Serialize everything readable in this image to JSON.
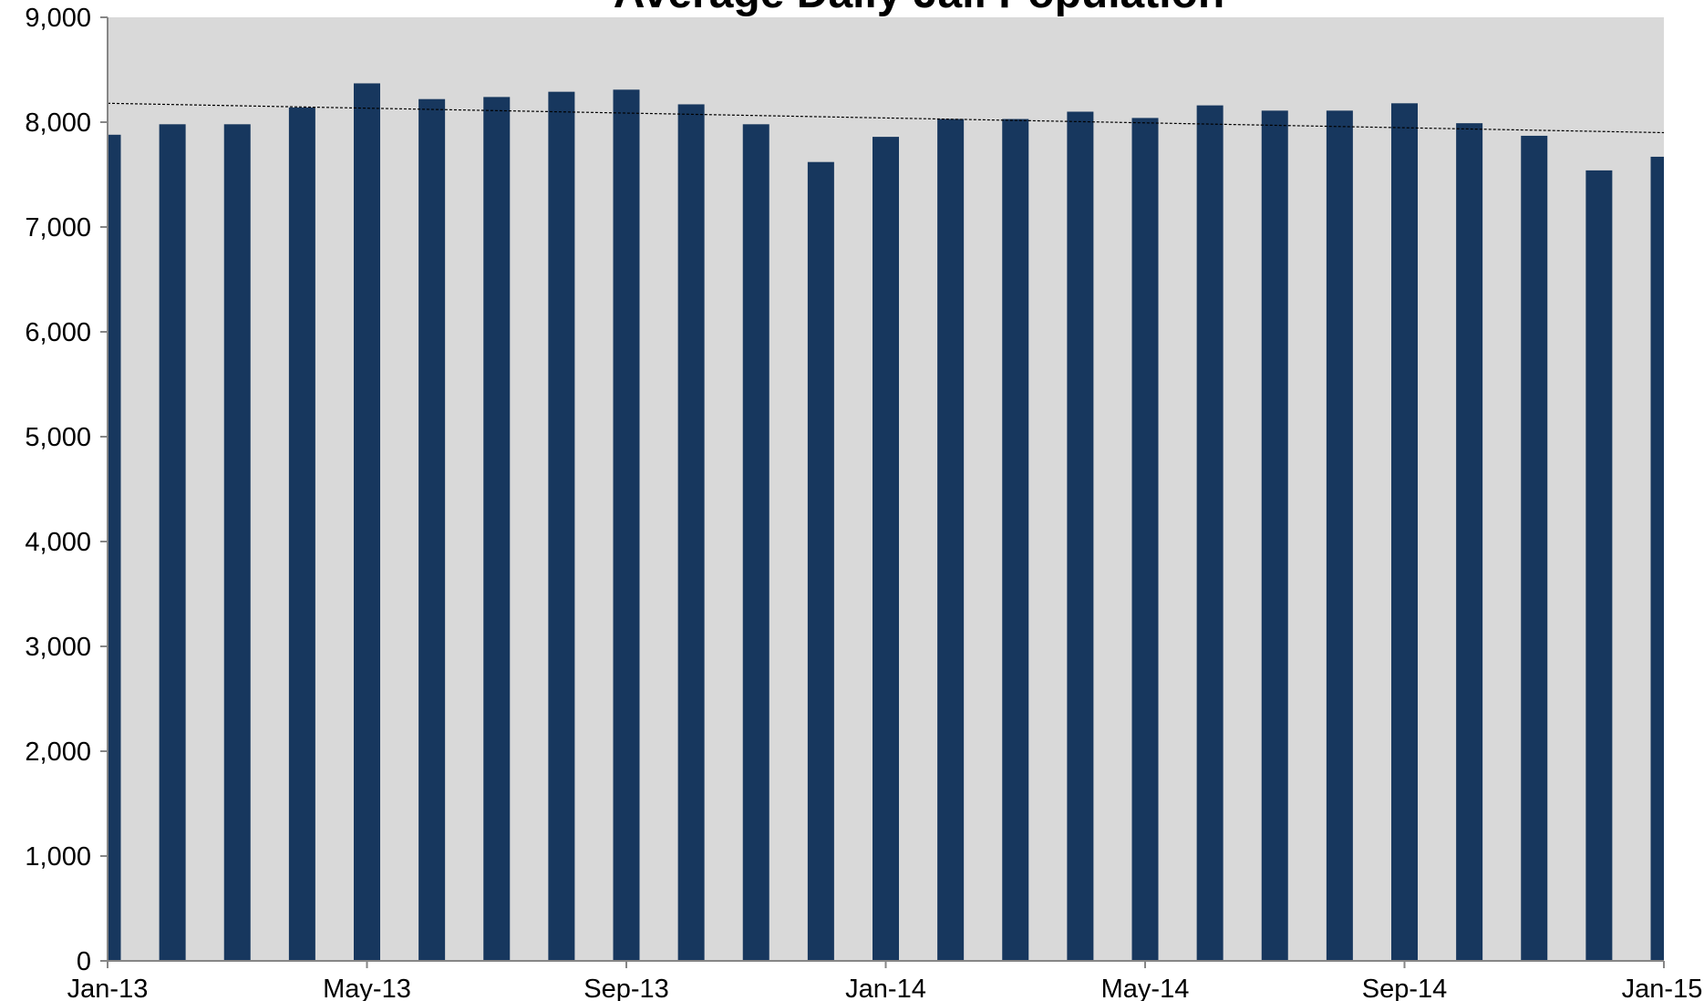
{
  "chart_data": {
    "type": "bar",
    "title": "Average Daily Jail Population",
    "categories": [
      "Jan-13",
      null,
      null,
      null,
      "May-13",
      null,
      null,
      null,
      "Sep-13",
      null,
      null,
      null,
      "Jan-14",
      null,
      null,
      null,
      "May-14",
      null,
      null,
      null,
      "Sep-14",
      null,
      null,
      null,
      "Jan-15"
    ],
    "values": [
      7880,
      7980,
      7980,
      8140,
      8370,
      8220,
      8240,
      8290,
      8310,
      8170,
      7980,
      7620,
      7860,
      8030,
      8030,
      8100,
      8040,
      8160,
      8110,
      8110,
      8180,
      7990,
      7870,
      7540,
      7670
    ],
    "color": "#17375e",
    "trendline": [
      8180,
      7900
    ],
    "ylim": [
      0,
      9000
    ],
    "yticks": [
      {
        "value": 0,
        "label": "0"
      },
      {
        "value": 1000,
        "label": "1,000"
      },
      {
        "value": 2000,
        "label": "2,000"
      },
      {
        "value": 3000,
        "label": "3,000"
      },
      {
        "value": 4000,
        "label": "4,000"
      },
      {
        "value": 5000,
        "label": "5,000"
      },
      {
        "value": 6000,
        "label": "6,000"
      },
      {
        "value": 7000,
        "label": "7,000"
      },
      {
        "value": 8000,
        "label": "8,000"
      },
      {
        "value": 9000,
        "label": "9,000"
      }
    ]
  }
}
